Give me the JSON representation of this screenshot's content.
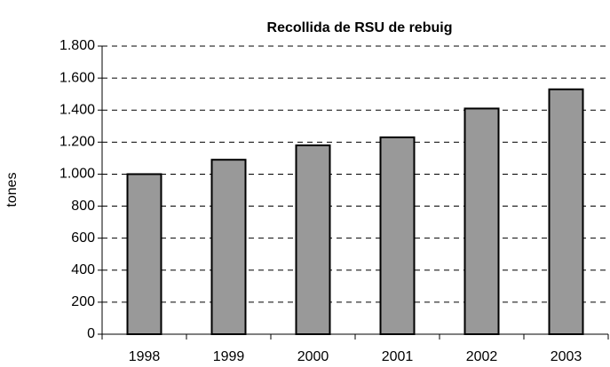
{
  "chart_data": {
    "type": "bar",
    "title": "Recollida de RSU de rebuig",
    "y_label": "tones",
    "categories": [
      "1998",
      "1999",
      "2000",
      "2001",
      "2002",
      "2003"
    ],
    "values": [
      1000,
      1090,
      1180,
      1230,
      1410,
      1530
    ],
    "color": "#999999",
    "ylim": [
      0,
      1800
    ],
    "yticks": [
      0,
      200,
      400,
      600,
      800,
      {
        "value": 1000,
        "label": "1.000"
      },
      {
        "value": 1200,
        "label": "1.200"
      },
      {
        "value": 1400,
        "label": "1.400"
      },
      {
        "value": 1600,
        "label": "1.600"
      },
      {
        "value": 1800,
        "label": "1.800"
      }
    ],
    "grid": true
  }
}
